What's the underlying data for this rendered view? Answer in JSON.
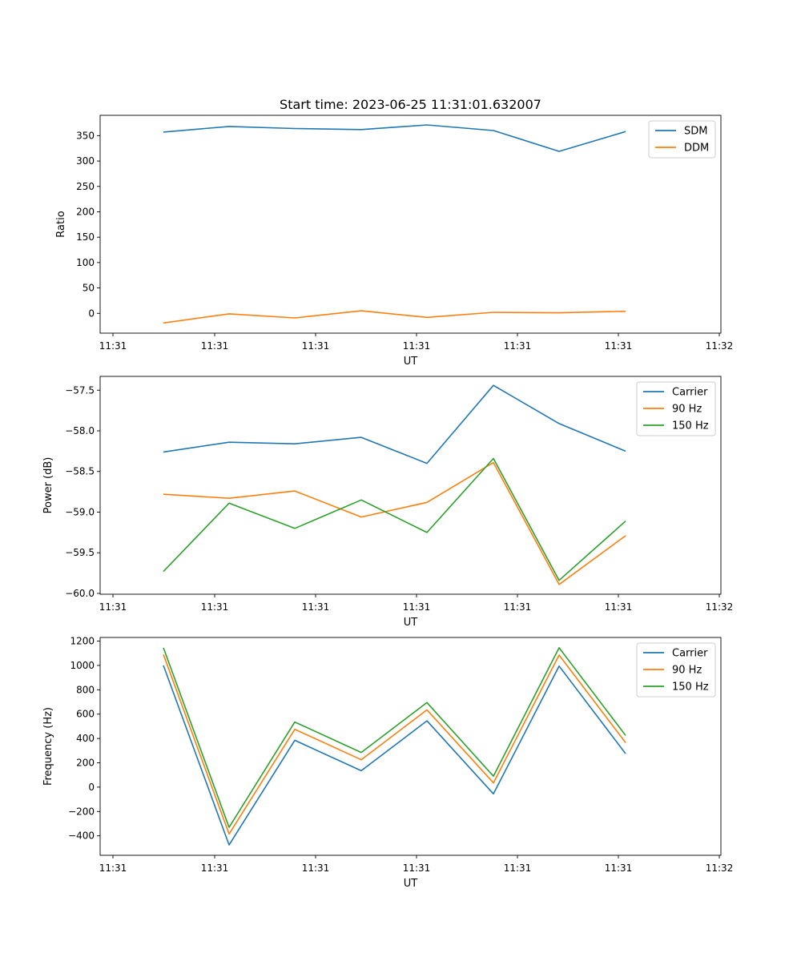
{
  "chart_data": [
    {
      "type": "line",
      "title": "Start time: 2023-06-25 11:31:01.632007",
      "xlabel": "UT",
      "ylabel": "Ratio",
      "x_tick_labels": [
        "11:31",
        "11:31",
        "11:31",
        "11:31",
        "11:31",
        "11:31",
        "11:32"
      ],
      "ylim": [
        -39,
        390
      ],
      "y_ticks": [
        0,
        50,
        100,
        150,
        200,
        250,
        300,
        350
      ],
      "grid": false,
      "legend_position": "top-right",
      "series": [
        {
          "name": "SDM",
          "color": "#1f77b4",
          "values": [
            357,
            368,
            364,
            362,
            371,
            360,
            319,
            358
          ]
        },
        {
          "name": "DDM",
          "color": "#ff7f0e",
          "values": [
            -19,
            -1,
            -9,
            5,
            -8,
            2,
            1,
            4
          ]
        }
      ]
    },
    {
      "type": "line",
      "title": "",
      "xlabel": "UT",
      "ylabel": "Power (dB)",
      "x_tick_labels": [
        "11:31",
        "11:31",
        "11:31",
        "11:31",
        "11:31",
        "11:31",
        "11:32"
      ],
      "ylim": [
        -60.01,
        -57.33
      ],
      "y_ticks": [
        -60.0,
        -59.5,
        -59.0,
        -58.5,
        -58.0,
        -57.5
      ],
      "grid": false,
      "legend_position": "top-right",
      "series": [
        {
          "name": "Carrier",
          "color": "#1f77b4",
          "values": [
            -58.26,
            -58.14,
            -58.16,
            -58.08,
            -58.4,
            -57.44,
            -57.91,
            -58.25
          ]
        },
        {
          "name": "90 Hz",
          "color": "#ff7f0e",
          "values": [
            -58.78,
            -58.83,
            -58.74,
            -59.06,
            -58.88,
            -58.39,
            -59.89,
            -59.29
          ]
        },
        {
          "name": "150 Hz",
          "color": "#2ca02c",
          "values": [
            -59.73,
            -58.89,
            -59.2,
            -58.85,
            -59.25,
            -58.34,
            -59.84,
            -59.11
          ]
        }
      ]
    },
    {
      "type": "line",
      "title": "",
      "xlabel": "UT",
      "ylabel": "Frequency (Hz)",
      "x_tick_labels": [
        "11:31",
        "11:31",
        "11:31",
        "11:31",
        "11:31",
        "11:31",
        "11:32"
      ],
      "ylim": [
        -560,
        1230
      ],
      "y_ticks": [
        -400,
        -200,
        0,
        200,
        400,
        600,
        800,
        1000,
        1200
      ],
      "grid": false,
      "legend_position": "top-right",
      "series": [
        {
          "name": "Carrier",
          "color": "#1f77b4",
          "values": [
            1000,
            -475,
            385,
            135,
            545,
            -55,
            995,
            275
          ]
        },
        {
          "name": "90 Hz",
          "color": "#ff7f0e",
          "values": [
            1090,
            -385,
            475,
            225,
            635,
            35,
            1085,
            365
          ]
        },
        {
          "name": "150 Hz",
          "color": "#2ca02c",
          "values": [
            1145,
            -330,
            535,
            285,
            695,
            90,
            1145,
            425
          ]
        }
      ]
    }
  ]
}
